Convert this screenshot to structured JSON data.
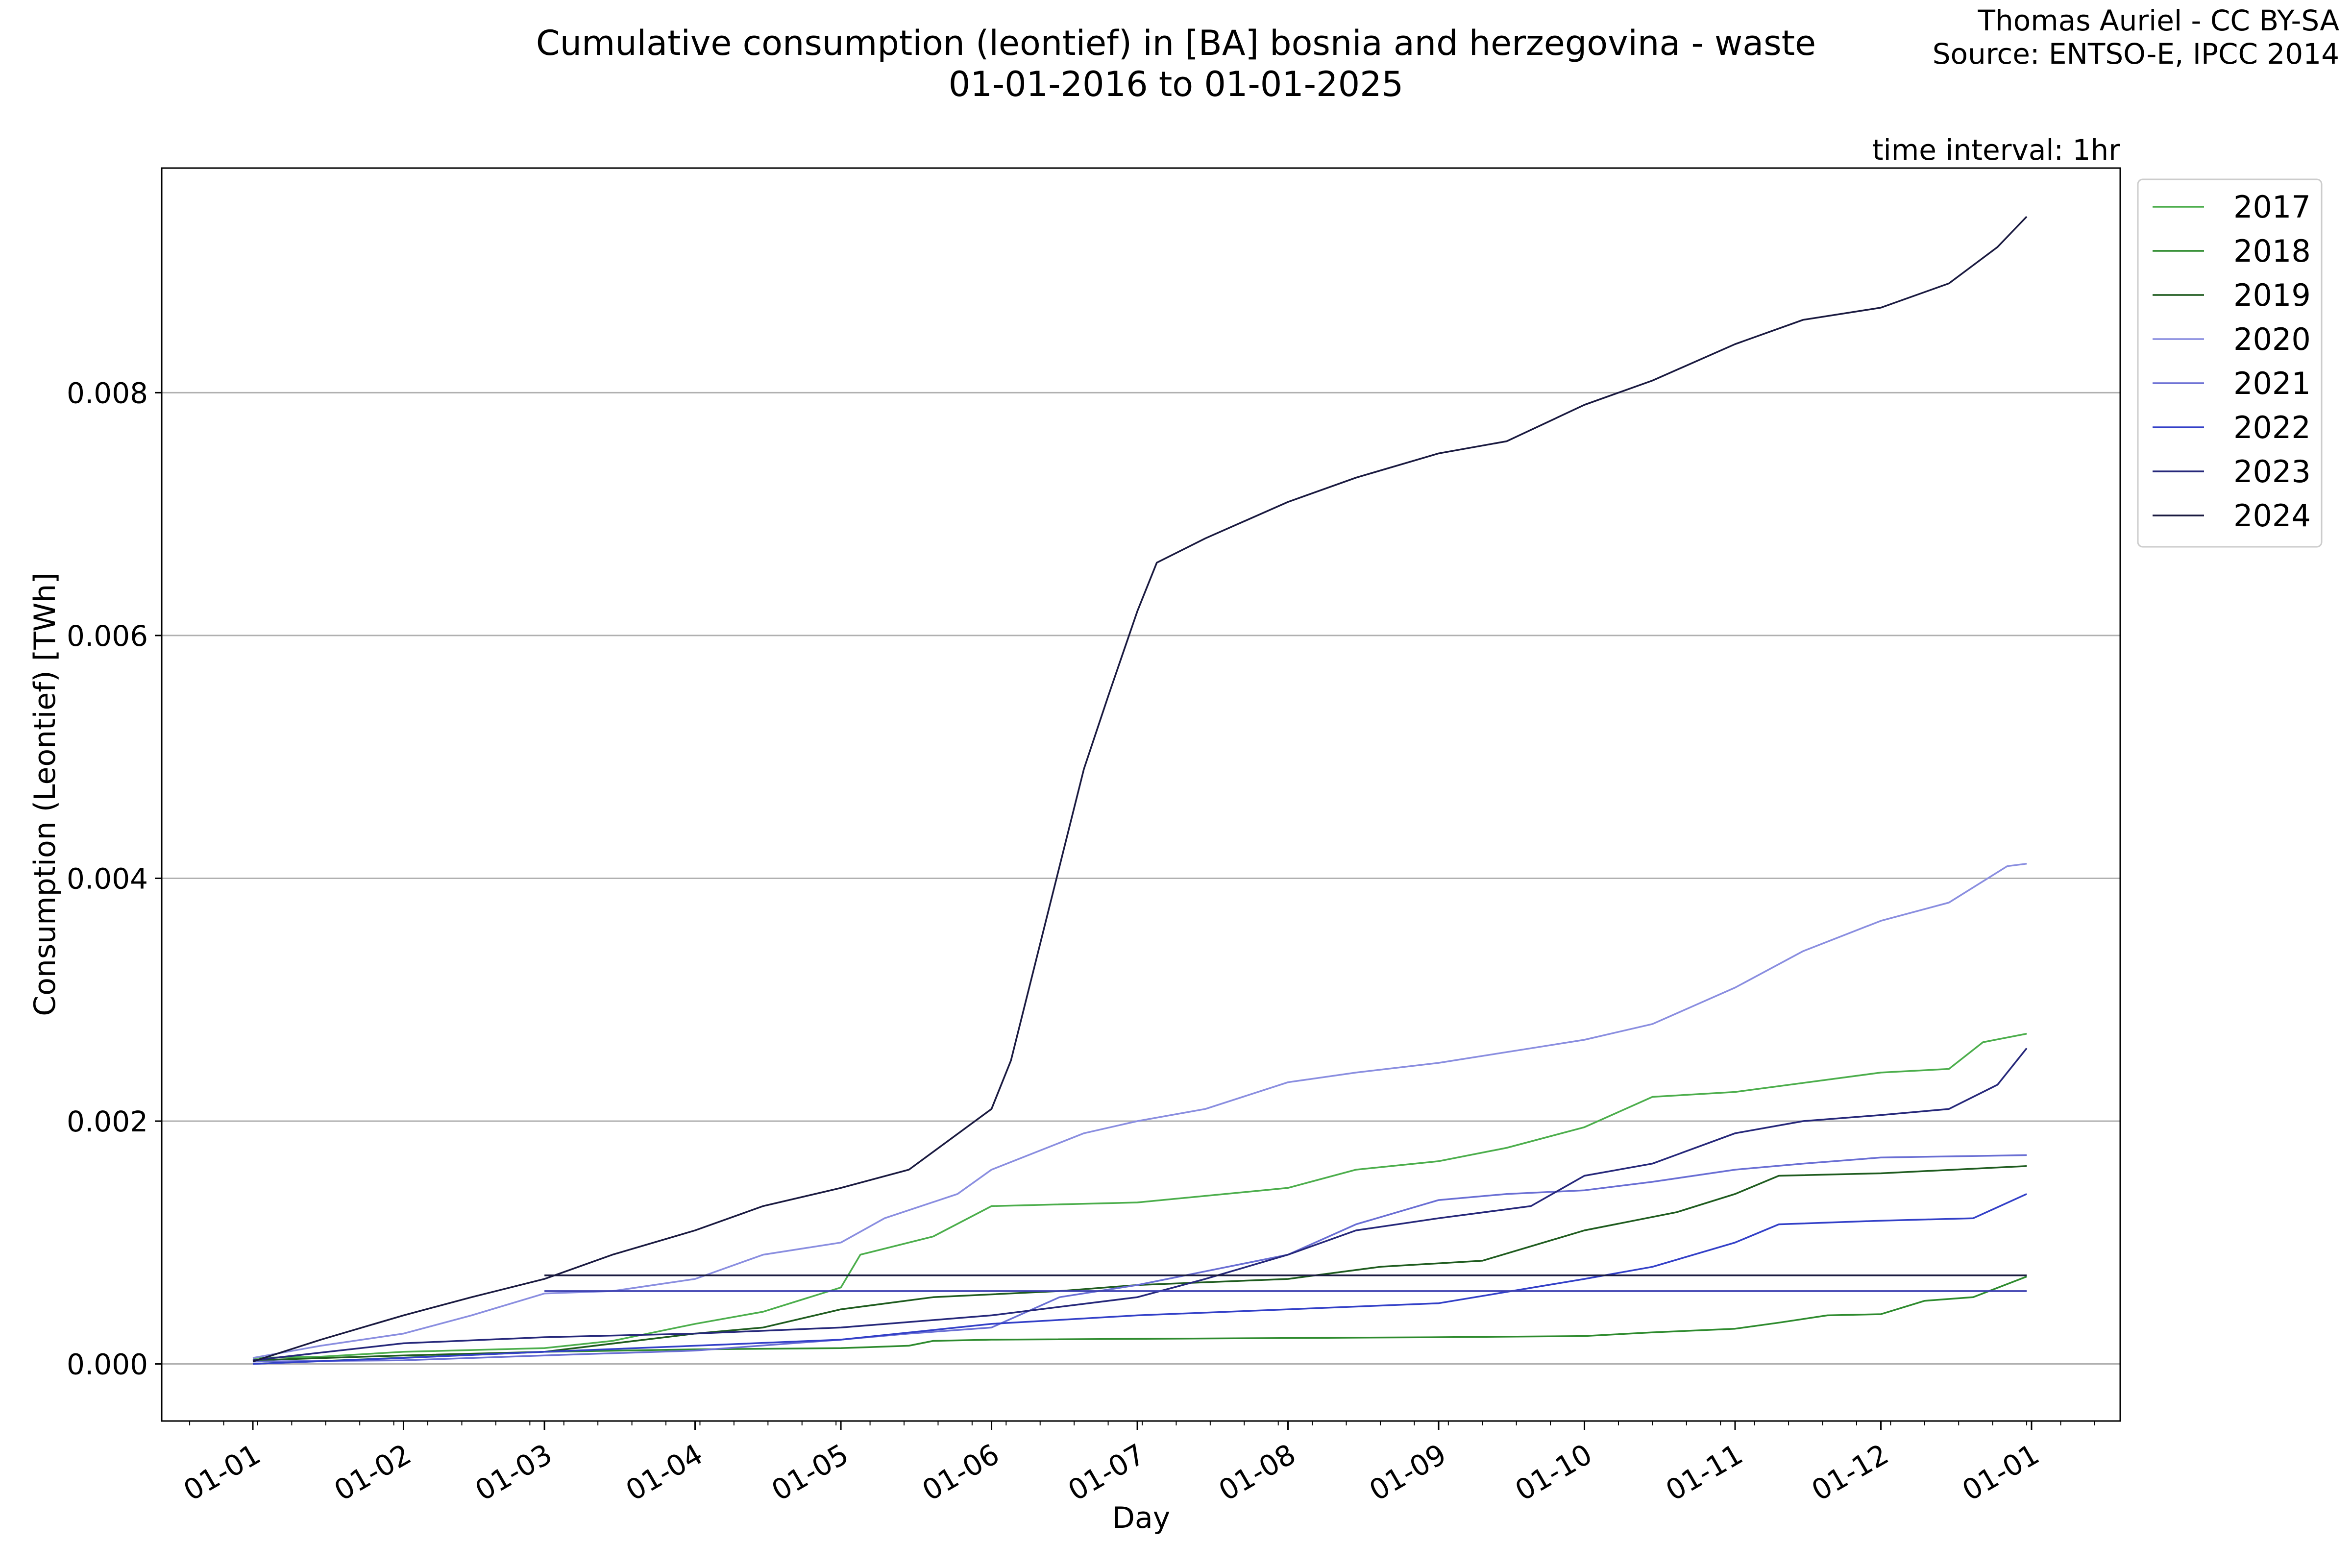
{
  "chart_data": {
    "type": "line",
    "title_line1": "Cumulative consumption (leontief) in [BA] bosnia and herzegovina - waste",
    "title_line2": "01-01-2016 to 01-01-2025",
    "credit_line1": "Thomas Auriel - CC BY-SA",
    "credit_line2": "Source: ENTSO-E, IPCC 2014",
    "annotation": "time interval: 1hr",
    "xlabel": "Day",
    "ylabel": "Consumption (Leontief) [TWh]",
    "x_tick_labels": [
      "01-01",
      "01-02",
      "01-03",
      "01-04",
      "01-05",
      "01-06",
      "01-07",
      "01-08",
      "01-09",
      "01-10",
      "01-11",
      "01-12",
      "01-01"
    ],
    "y_tick_labels": [
      "0.000",
      "0.002",
      "0.004",
      "0.006",
      "0.008"
    ],
    "ylim": [
      -0.00047,
      0.00985
    ],
    "grid": "horizontal",
    "legend_position": "outside-right-top",
    "series": [
      {
        "name": "2017",
        "color": "#4cae4c",
        "points": [
          [
            "01-01",
            5e-05
          ],
          [
            "01-15",
            6e-05
          ],
          [
            "02-01",
            0.0001
          ],
          [
            "03-01",
            0.00013
          ],
          [
            "03-15",
            0.00019
          ],
          [
            "04-01",
            0.00033
          ],
          [
            "04-15",
            0.00043
          ],
          [
            "05-01",
            0.00063
          ],
          [
            "05-05",
            0.0009
          ],
          [
            "05-20",
            0.00105
          ],
          [
            "06-01",
            0.0013
          ],
          [
            "07-01",
            0.00133
          ],
          [
            "08-01",
            0.00145
          ],
          [
            "08-15",
            0.0016
          ],
          [
            "09-01",
            0.00167
          ],
          [
            "09-15",
            0.00178
          ],
          [
            "10-01",
            0.00195
          ],
          [
            "10-15",
            0.0022
          ],
          [
            "11-01",
            0.00224
          ],
          [
            "12-01",
            0.0024
          ],
          [
            "12-15",
            0.00243
          ],
          [
            "12-22",
            0.00265
          ],
          [
            "12-31",
            0.00272
          ]
        ]
      },
      {
        "name": "2018",
        "color": "#2e8b2e",
        "points": [
          [
            "01-01",
            0.0
          ],
          [
            "03-01",
            0.0001
          ],
          [
            "04-01",
            0.00012
          ],
          [
            "05-01",
            0.00013
          ],
          [
            "05-15",
            0.00015
          ],
          [
            "05-20",
            0.00019
          ],
          [
            "06-01",
            0.0002
          ],
          [
            "09-01",
            0.00022
          ],
          [
            "10-01",
            0.00023
          ],
          [
            "10-15",
            0.00026
          ],
          [
            "11-01",
            0.00029
          ],
          [
            "11-10",
            0.00034
          ],
          [
            "11-20",
            0.0004
          ],
          [
            "12-01",
            0.00041
          ],
          [
            "12-10",
            0.00052
          ],
          [
            "12-20",
            0.00055
          ],
          [
            "12-31",
            0.00072
          ]
        ]
      },
      {
        "name": "2019",
        "color": "#1f5c1f",
        "points": [
          [
            "01-01",
            3e-05
          ],
          [
            "02-01",
            7e-05
          ],
          [
            "03-01",
            0.0001
          ],
          [
            "04-01",
            0.00025
          ],
          [
            "04-15",
            0.0003
          ],
          [
            "05-01",
            0.00045
          ],
          [
            "05-20",
            0.00055
          ],
          [
            "06-15",
            0.0006
          ],
          [
            "07-01",
            0.00065
          ],
          [
            "08-01",
            0.0007
          ],
          [
            "08-20",
            0.0008
          ],
          [
            "09-10",
            0.00085
          ],
          [
            "10-01",
            0.0011
          ],
          [
            "10-20",
            0.00125
          ],
          [
            "11-01",
            0.0014
          ],
          [
            "11-10",
            0.00155
          ],
          [
            "12-01",
            0.00157
          ],
          [
            "12-31",
            0.00163
          ]
        ]
      },
      {
        "name": "2020",
        "color": "#8a8ee0",
        "points": [
          [
            "01-01",
            5e-05
          ],
          [
            "01-15",
            0.00015
          ],
          [
            "02-01",
            0.00025
          ],
          [
            "02-15",
            0.0004
          ],
          [
            "03-01",
            0.00058
          ],
          [
            "03-15",
            0.0006
          ],
          [
            "04-01",
            0.0007
          ],
          [
            "04-15",
            0.0009
          ],
          [
            "05-01",
            0.001
          ],
          [
            "05-10",
            0.0012
          ],
          [
            "05-25",
            0.0014
          ],
          [
            "06-01",
            0.0016
          ],
          [
            "06-20",
            0.0019
          ],
          [
            "07-01",
            0.002
          ],
          [
            "07-15",
            0.0021
          ],
          [
            "08-01",
            0.00232
          ],
          [
            "08-15",
            0.0024
          ],
          [
            "09-01",
            0.00248
          ],
          [
            "09-20",
            0.0026
          ],
          [
            "10-01",
            0.00267
          ],
          [
            "10-15",
            0.0028
          ],
          [
            "11-01",
            0.0031
          ],
          [
            "11-15",
            0.0034
          ],
          [
            "12-01",
            0.00365
          ],
          [
            "12-15",
            0.0038
          ],
          [
            "12-27",
            0.0041
          ],
          [
            "12-31",
            0.00412
          ]
        ]
      },
      {
        "name": "2021",
        "color": "#6a6fd4",
        "points": [
          [
            "01-01",
            2e-05
          ],
          [
            "02-01",
            3e-05
          ],
          [
            "03-01",
            7e-05
          ],
          [
            "04-01",
            0.00011
          ],
          [
            "05-01",
            0.0002
          ],
          [
            "05-15",
            0.00025
          ],
          [
            "06-01",
            0.0003
          ],
          [
            "06-15",
            0.00055
          ],
          [
            "07-01",
            0.00065
          ],
          [
            "08-01",
            0.0009
          ],
          [
            "08-15",
            0.00115
          ],
          [
            "09-01",
            0.00135
          ],
          [
            "09-15",
            0.0014
          ],
          [
            "10-01",
            0.00143
          ],
          [
            "10-15",
            0.0015
          ],
          [
            "11-01",
            0.0016
          ],
          [
            "11-15",
            0.00165
          ],
          [
            "12-01",
            0.0017
          ],
          [
            "12-31",
            0.00172
          ]
        ]
      },
      {
        "name": "2022",
        "color": "#3340c8",
        "points": [
          [
            "01-01",
            0.0
          ],
          [
            "02-01",
            5e-05
          ],
          [
            "03-01",
            0.0001
          ],
          [
            "04-01",
            0.00015
          ],
          [
            "05-01",
            0.0002
          ],
          [
            "06-01",
            0.00033
          ],
          [
            "07-01",
            0.0004
          ],
          [
            "08-01",
            0.00045
          ],
          [
            "09-01",
            0.0005
          ],
          [
            "10-01",
            0.0007
          ],
          [
            "10-15",
            0.0008
          ],
          [
            "11-01",
            0.001
          ],
          [
            "11-10",
            0.00115
          ],
          [
            "12-01",
            0.00118
          ],
          [
            "12-20",
            0.0012
          ],
          [
            "12-31",
            0.0014
          ]
        ]
      },
      {
        "name": "2023",
        "color": "#26287a",
        "points": [
          [
            "01-01",
            3e-05
          ],
          [
            "02-01",
            0.00017
          ],
          [
            "03-01",
            0.00022
          ],
          [
            "04-01",
            0.00025
          ],
          [
            "05-01",
            0.0003
          ],
          [
            "06-01",
            0.0004
          ],
          [
            "07-01",
            0.00055
          ],
          [
            "07-15",
            0.0007
          ],
          [
            "08-01",
            0.0009
          ],
          [
            "08-15",
            0.0011
          ],
          [
            "09-01",
            0.0012
          ],
          [
            "09-20",
            0.0013
          ],
          [
            "10-01",
            0.00155
          ],
          [
            "10-15",
            0.00165
          ],
          [
            "11-01",
            0.0019
          ],
          [
            "11-15",
            0.002
          ],
          [
            "12-01",
            0.00205
          ],
          [
            "12-15",
            0.0021
          ],
          [
            "12-25",
            0.0023
          ],
          [
            "12-31",
            0.0026
          ]
        ]
      },
      {
        "name": "2024",
        "color": "#1a1a40",
        "points": [
          [
            "01-01",
            2e-05
          ],
          [
            "01-15",
            0.0002
          ],
          [
            "02-01",
            0.0004
          ],
          [
            "02-15",
            0.00055
          ],
          [
            "03-01",
            0.0007
          ],
          [
            "03-15",
            0.0009
          ],
          [
            "04-01",
            0.0011
          ],
          [
            "04-15",
            0.0013
          ],
          [
            "05-01",
            0.00145
          ],
          [
            "05-15",
            0.0016
          ],
          [
            "06-01",
            0.0021
          ],
          [
            "06-05",
            0.0025
          ],
          [
            "06-10",
            0.0033
          ],
          [
            "06-15",
            0.0041
          ],
          [
            "06-20",
            0.0049
          ],
          [
            "06-25",
            0.0055
          ],
          [
            "07-01",
            0.0062
          ],
          [
            "07-05",
            0.0066
          ],
          [
            "07-15",
            0.0068
          ],
          [
            "08-01",
            0.0071
          ],
          [
            "08-15",
            0.0073
          ],
          [
            "09-01",
            0.0075
          ],
          [
            "09-15",
            0.0076
          ],
          [
            "10-01",
            0.0079
          ],
          [
            "10-15",
            0.0081
          ],
          [
            "11-01",
            0.0084
          ],
          [
            "11-15",
            0.0086
          ],
          [
            "12-01",
            0.0087
          ],
          [
            "12-15",
            0.0089
          ],
          [
            "12-25",
            0.0092
          ],
          [
            "12-31",
            0.00945
          ]
        ]
      },
      {
        "name": "",
        "color": "#3b3fb0",
        "points": [
          [
            "03-01",
            0.0006
          ],
          [
            "12-31",
            0.0006
          ]
        ]
      },
      {
        "name": "",
        "color": "#1a1a40",
        "points": [
          [
            "03-01",
            0.00073
          ],
          [
            "12-31",
            0.00073
          ]
        ]
      }
    ]
  }
}
